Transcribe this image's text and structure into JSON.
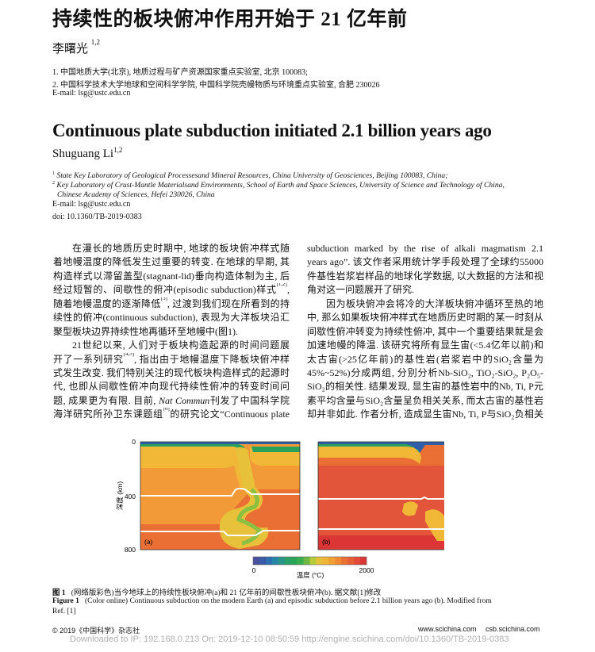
{
  "zh_header": {
    "title": "持续性的板块俯冲作用开始于 21 亿年前",
    "author": "李曙光",
    "author_sup": "1,2",
    "affiliations": [
      "1.   中国地质大学(北京), 地质过程与矿产资源国家重点实验室, 北京  100083;",
      "2.   中国科学技术大学地球和空间科学学院, 中国科学院壳幔物质与环境重点实验室, 合肥  230026"
    ],
    "email": "E-mail: lsg@ustc.edu.cn"
  },
  "en_header": {
    "title": "Continuous plate subduction initiated 2.1 billion years ago",
    "author": "Shuguang Li",
    "author_sup": "1,2",
    "affiliations": [
      {
        "sup": "1",
        "text": "State Key Laboratory of Geological Processesand Mineral Resources, China University of Geosciences, Beijing 100083, China;"
      },
      {
        "sup": "2",
        "text": "Key Laboratory of Crust-Mantle Materialsand Environments, School of Earth and Space Sciences, University of Science and Technology of China,"
      },
      {
        "sup": "",
        "text": "Chinese Academy of Sciences, Hefei 230026, China"
      }
    ],
    "email": "E-mail: lsg@ustc.edu.cn",
    "doi": "doi: 10.1360/TB-2019-0383"
  },
  "body": {
    "left_lines": [
      "在漫长的地质历史时期中, 地球的板块俯冲样式随",
      "着地幔温度的降低发生过重要的转变. 在地球的早期, 其",
      "构造样式以滞留盖型(stagnant-lid)垂向构造体制为主, 后",
      "经过短暂的、间歇性的俯冲(episodic subduction)样式^[1,2]^,",
      "随着地幔温度的逐渐降低^[3]^, 过渡到我们现在所看到的持",
      "续性的俯冲(continuous subduction), 表现为大洋板块沿汇",
      "聚型板块边界持续性地再循环至地幔中(图1).",
      "21世纪以来, 人们对于板块构造起源的时间问题展",
      "开了一系列研究^[4,5]^, 指出由于地幔温度下降板块俯冲样",
      "式发生改变. 我们特别关注的现代板块构造样式的起源时",
      "代, 也即从间歇性俯冲向现代持续性俯冲的转变时间问",
      "题, 成果更为有限. 目前, *Nat Commun*刊发了中国科学院",
      "海洋研究所孙卫东课题组^[6]^的研究论文“Continuous plate"
    ],
    "right_lines": [
      "subduction marked by the rise of alkali magmatism 2.1 billion",
      "years ago”. 该文作者采用统计学手段处理了全球约55000",
      "件基性岩浆岩样品的地球化学数据, 以大数据的方法和视",
      "角对这一问题展开了研究.",
      "因为板块俯冲会将冷的大洋板块俯冲循环至热的地幔",
      "中, 那么如果板块俯冲样式在地质历史时期的某一时刻从",
      "间歇性俯冲转变为持续性俯冲, 其中一个重要结果就是会",
      "加速地幔的降温. 该研究将所有显生宙(<5.4亿年以前)和",
      "太古宙(>25亿年前)的基性岩(岩浆岩中的SiO₂含量为",
      "45%~52%)分成两组, 分别分析Nb-SiO₂, TiO₂-SiO₂, P₂O₅-",
      "SiO₂的相关性. 结果发现, 显生宙的基性岩中的Nb, Ti, P元",
      "素平均含量与SiO₂含量呈负相关关系, 而太古宙的基性岩",
      "却并非如此. 作者分析, 造成显生宙Nb, Ti, P与SiO₂负相关"
    ]
  },
  "figure": {
    "y_axis_label": "深度 (km)",
    "y_ticks": [
      "0",
      "400",
      "800"
    ],
    "panel_a_label": "(a)",
    "panel_b_label": "(b)",
    "colorbar_label": "温度 (°C)",
    "colorbar_min": "0",
    "colorbar_max": "2000",
    "colorbar_colors": [
      "#4a4f9c",
      "#3a5aa6",
      "#2f6fb0",
      "#2a86a8",
      "#2a9688",
      "#2aa067",
      "#2aa457",
      "#3aac4c",
      "#6bb845",
      "#b4cc3a",
      "#e3c23a",
      "#f0b436",
      "#f1a034",
      "#ef8c33",
      "#ea7134",
      "#e65e36",
      "#e24a37",
      "#dc3535"
    ]
  },
  "caption": {
    "zh_label": "图 1",
    "zh_text": "(网络版彩色)当今地球上的持续性板块俯冲(a)和 21 亿年前的间歇性板块俯冲(b). 据文献[1]修改",
    "en_label": "Figure 1",
    "en_text": "(Color online) Continuous subduction on the modern Earth (a) and episodic subduction before 2.1 billion years ago (b). Modified from",
    "en_text2": "Ref. [1]"
  },
  "footer": {
    "copyright": "© 2019《中国科学》杂志社",
    "site1": "www.scichina.com",
    "site2": "csb.scichina.com",
    "watermark": "Downloaded to IP: 192.168.0.213 On: 2019-12-10 08:50:59 http://engine.scichina.com/doi/10.1360/TB-2019-0383"
  }
}
